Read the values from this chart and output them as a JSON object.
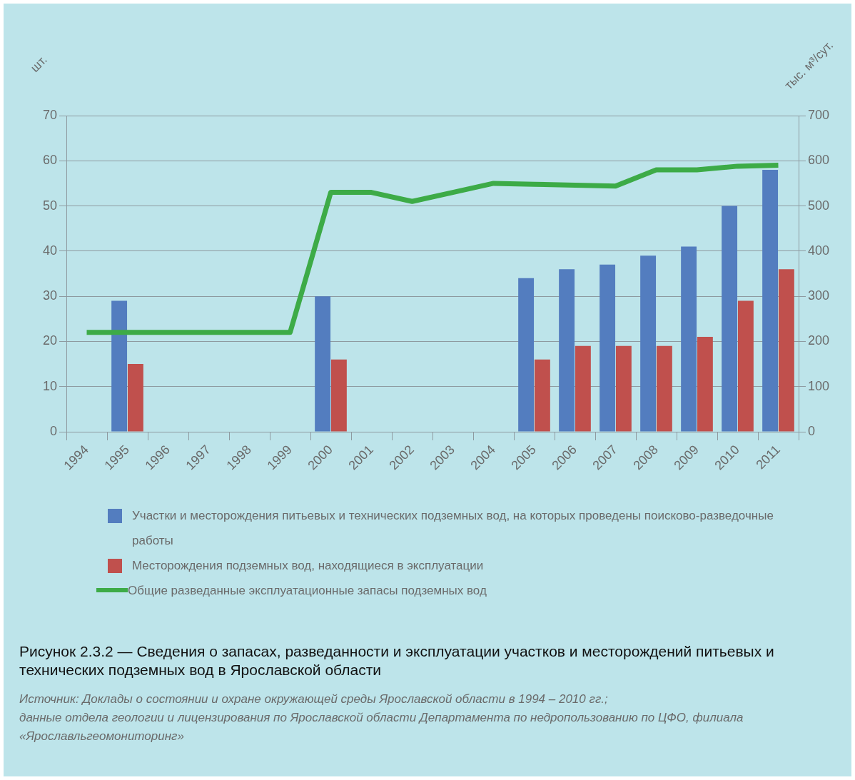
{
  "chart_data": {
    "type": "bar",
    "title": "Рисунок 2.3.2 — Сведения о запасах, разведанности и эксплуатации участков и месторождений питьевых и технических подземных вод в Ярославской области",
    "categories": [
      "1994",
      "1995",
      "1996",
      "1997",
      "1998",
      "1999",
      "2000",
      "2001",
      "2002",
      "2003",
      "2004",
      "2005",
      "2006",
      "2007",
      "2008",
      "2009",
      "2010",
      "2011"
    ],
    "series": [
      {
        "name": "Участки и месторождения питьевых и технических подземных вод, на которых проведены поисково-разведочные работы",
        "color": "#537dbf",
        "values": [
          null,
          29,
          null,
          null,
          null,
          null,
          30,
          null,
          null,
          null,
          null,
          34,
          36,
          37,
          39,
          41,
          50,
          58
        ]
      },
      {
        "name": "Месторождения подземных вод, находящиеся в эксплуатации",
        "color": "#c0504d",
        "values": [
          null,
          15,
          null,
          null,
          null,
          null,
          16,
          null,
          null,
          null,
          null,
          16,
          19,
          19,
          19,
          21,
          29,
          36
        ]
      },
      {
        "name": "Общие разведанные эксплуатационные запасы подземных вод",
        "type": "line",
        "axis": "y2",
        "color": "#3dab47",
        "values": [
          220,
          220,
          220,
          220,
          220,
          220,
          530,
          530,
          510,
          530,
          550,
          548,
          546,
          544,
          580,
          580,
          588,
          590
        ]
      }
    ],
    "ylabel": "шт.",
    "y2label": "тыс. м³/сут.",
    "ylim": [
      0,
      70
    ],
    "yticks": [
      0,
      10,
      20,
      30,
      40,
      50,
      60,
      70
    ],
    "y2lim": [
      0,
      700
    ],
    "y2ticks": [
      0,
      100,
      200,
      300,
      400,
      500,
      600,
      700
    ],
    "grid": "y",
    "legend": "bottom",
    "annotations": [
      "Источник: Доклады о состоянии и охране окружающей среды Ярославской области в 1994 – 2010 гг.;",
      "данные отдела геологии и лицензирования по Ярославской области Департамента по недропользованию по ЦФО, филиала «Ярославльгеомониторинг»"
    ]
  }
}
